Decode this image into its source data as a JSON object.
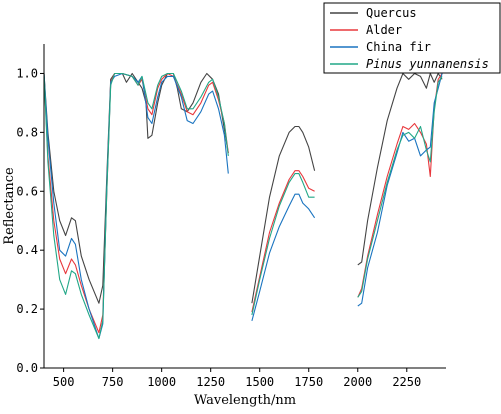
{
  "chart_data": {
    "type": "line",
    "title": "",
    "xlabel": "Wavelength/nm",
    "ylabel": "Reflectance",
    "xlim": [
      400,
      2450
    ],
    "ylim": [
      0,
      1.1
    ],
    "x_ticks": [
      500,
      750,
      1000,
      1250,
      1500,
      1750,
      2000,
      2250
    ],
    "y_ticks": [
      0.0,
      0.2,
      0.4,
      0.6,
      0.8,
      1.0
    ],
    "x_tick_labels": [
      "500",
      "750",
      "1000",
      "1250",
      "1500",
      "1750",
      "2000",
      "2250"
    ],
    "y_tick_labels": [
      "0.0",
      "0.2",
      "0.4",
      "0.6",
      "0.8",
      "1.0"
    ],
    "grid": false,
    "legend_position": "top-right",
    "series": [
      {
        "name": "Quercus",
        "color": "#444444",
        "segments": [
          [
            [
              400,
              1.0
            ],
            [
              420,
              0.8
            ],
            [
              450,
              0.6
            ],
            [
              480,
              0.5
            ],
            [
              510,
              0.45
            ],
            [
              540,
              0.51
            ],
            [
              560,
              0.5
            ],
            [
              590,
              0.38
            ],
            [
              630,
              0.3
            ],
            [
              680,
              0.22
            ],
            [
              700,
              0.28
            ],
            [
              720,
              0.65
            ],
            [
              740,
              0.98
            ],
            [
              760,
              1.0
            ],
            [
              800,
              1.0
            ],
            [
              820,
              0.97
            ],
            [
              850,
              1.0
            ],
            [
              880,
              0.97
            ],
            [
              900,
              0.95
            ],
            [
              920,
              0.9
            ],
            [
              930,
              0.78
            ],
            [
              950,
              0.79
            ],
            [
              980,
              0.9
            ],
            [
              1000,
              0.96
            ],
            [
              1030,
              1.0
            ],
            [
              1060,
              1.0
            ],
            [
              1080,
              0.95
            ],
            [
              1100,
              0.88
            ],
            [
              1130,
              0.87
            ],
            [
              1160,
              0.9
            ],
            [
              1200,
              0.97
            ],
            [
              1230,
              1.0
            ],
            [
              1260,
              0.98
            ],
            [
              1290,
              0.93
            ],
            [
              1310,
              0.85
            ],
            [
              1340,
              0.73
            ]
          ],
          [
            [
              1460,
              0.22
            ],
            [
              1500,
              0.38
            ],
            [
              1550,
              0.58
            ],
            [
              1600,
              0.72
            ],
            [
              1650,
              0.8
            ],
            [
              1680,
              0.82
            ],
            [
              1700,
              0.82
            ],
            [
              1720,
              0.8
            ],
            [
              1750,
              0.75
            ],
            [
              1780,
              0.67
            ]
          ],
          [
            [
              2000,
              0.35
            ],
            [
              2020,
              0.36
            ],
            [
              2050,
              0.5
            ],
            [
              2100,
              0.68
            ],
            [
              2150,
              0.84
            ],
            [
              2200,
              0.95
            ],
            [
              2230,
              1.0
            ],
            [
              2260,
              0.98
            ],
            [
              2290,
              1.0
            ],
            [
              2320,
              0.99
            ],
            [
              2350,
              0.95
            ],
            [
              2370,
              1.0
            ],
            [
              2390,
              0.97
            ],
            [
              2410,
              1.0
            ],
            [
              2430,
              0.98
            ]
          ]
        ]
      },
      {
        "name": "Alder",
        "color": "#e8383d",
        "segments": [
          [
            [
              400,
              1.0
            ],
            [
              420,
              0.72
            ],
            [
              450,
              0.5
            ],
            [
              480,
              0.37
            ],
            [
              510,
              0.32
            ],
            [
              540,
              0.37
            ],
            [
              560,
              0.35
            ],
            [
              590,
              0.28
            ],
            [
              630,
              0.2
            ],
            [
              680,
              0.12
            ],
            [
              700,
              0.18
            ],
            [
              720,
              0.6
            ],
            [
              740,
              0.97
            ],
            [
              760,
              1.0
            ],
            [
              800,
              1.0
            ],
            [
              850,
              0.99
            ],
            [
              880,
              0.96
            ],
            [
              900,
              0.98
            ],
            [
              930,
              0.88
            ],
            [
              950,
              0.86
            ],
            [
              980,
              0.95
            ],
            [
              1000,
              0.98
            ],
            [
              1030,
              1.0
            ],
            [
              1060,
              0.99
            ],
            [
              1100,
              0.93
            ],
            [
              1130,
              0.87
            ],
            [
              1160,
              0.86
            ],
            [
              1200,
              0.9
            ],
            [
              1240,
              0.96
            ],
            [
              1260,
              0.97
            ],
            [
              1290,
              0.91
            ],
            [
              1320,
              0.83
            ],
            [
              1340,
              0.73
            ]
          ],
          [
            [
              1460,
              0.19
            ],
            [
              1500,
              0.31
            ],
            [
              1550,
              0.46
            ],
            [
              1600,
              0.56
            ],
            [
              1650,
              0.64
            ],
            [
              1680,
              0.67
            ],
            [
              1700,
              0.67
            ],
            [
              1720,
              0.65
            ],
            [
              1750,
              0.61
            ],
            [
              1780,
              0.6
            ]
          ],
          [
            [
              2000,
              0.24
            ],
            [
              2020,
              0.27
            ],
            [
              2050,
              0.38
            ],
            [
              2100,
              0.52
            ],
            [
              2150,
              0.65
            ],
            [
              2200,
              0.76
            ],
            [
              2230,
              0.82
            ],
            [
              2260,
              0.81
            ],
            [
              2290,
              0.83
            ],
            [
              2320,
              0.8
            ],
            [
              2350,
              0.76
            ],
            [
              2370,
              0.65
            ],
            [
              2390,
              0.88
            ],
            [
              2410,
              0.98
            ],
            [
              2430,
              1.0
            ]
          ]
        ]
      },
      {
        "name": "China fir",
        "color": "#1a74c0",
        "segments": [
          [
            [
              400,
              1.0
            ],
            [
              420,
              0.78
            ],
            [
              450,
              0.56
            ],
            [
              480,
              0.4
            ],
            [
              510,
              0.38
            ],
            [
              540,
              0.44
            ],
            [
              560,
              0.42
            ],
            [
              590,
              0.3
            ],
            [
              630,
              0.2
            ],
            [
              680,
              0.1
            ],
            [
              700,
              0.15
            ],
            [
              720,
              0.62
            ],
            [
              740,
              0.97
            ],
            [
              760,
              0.99
            ],
            [
              800,
              1.0
            ],
            [
              850,
              0.99
            ],
            [
              880,
              0.97
            ],
            [
              900,
              0.99
            ],
            [
              930,
              0.85
            ],
            [
              950,
              0.83
            ],
            [
              980,
              0.92
            ],
            [
              1000,
              0.97
            ],
            [
              1030,
              0.99
            ],
            [
              1060,
              0.99
            ],
            [
              1100,
              0.92
            ],
            [
              1130,
              0.84
            ],
            [
              1160,
              0.83
            ],
            [
              1200,
              0.87
            ],
            [
              1240,
              0.93
            ],
            [
              1260,
              0.94
            ],
            [
              1290,
              0.88
            ],
            [
              1320,
              0.79
            ],
            [
              1340,
              0.66
            ]
          ],
          [
            [
              1460,
              0.16
            ],
            [
              1500,
              0.26
            ],
            [
              1550,
              0.39
            ],
            [
              1600,
              0.48
            ],
            [
              1650,
              0.55
            ],
            [
              1680,
              0.59
            ],
            [
              1700,
              0.59
            ],
            [
              1720,
              0.56
            ],
            [
              1750,
              0.54
            ],
            [
              1780,
              0.51
            ]
          ],
          [
            [
              2000,
              0.21
            ],
            [
              2020,
              0.22
            ],
            [
              2050,
              0.34
            ],
            [
              2100,
              0.46
            ],
            [
              2150,
              0.62
            ],
            [
              2200,
              0.73
            ],
            [
              2230,
              0.8
            ],
            [
              2260,
              0.77
            ],
            [
              2290,
              0.78
            ],
            [
              2320,
              0.72
            ],
            [
              2350,
              0.74
            ],
            [
              2370,
              0.75
            ],
            [
              2390,
              0.9
            ],
            [
              2410,
              0.95
            ],
            [
              2430,
              1.0
            ]
          ]
        ]
      },
      {
        "name": "Pinus yunnanensis",
        "color": "#21a787",
        "segments": [
          [
            [
              400,
              1.0
            ],
            [
              420,
              0.7
            ],
            [
              450,
              0.45
            ],
            [
              480,
              0.3
            ],
            [
              510,
              0.25
            ],
            [
              540,
              0.33
            ],
            [
              560,
              0.32
            ],
            [
              590,
              0.25
            ],
            [
              630,
              0.18
            ],
            [
              680,
              0.1
            ],
            [
              700,
              0.16
            ],
            [
              720,
              0.6
            ],
            [
              740,
              0.96
            ],
            [
              760,
              1.0
            ],
            [
              800,
              1.0
            ],
            [
              850,
              0.99
            ],
            [
              880,
              0.96
            ],
            [
              900,
              0.99
            ],
            [
              930,
              0.9
            ],
            [
              950,
              0.88
            ],
            [
              980,
              0.96
            ],
            [
              1000,
              0.99
            ],
            [
              1030,
              1.0
            ],
            [
              1060,
              1.0
            ],
            [
              1100,
              0.94
            ],
            [
              1130,
              0.88
            ],
            [
              1160,
              0.88
            ],
            [
              1200,
              0.92
            ],
            [
              1240,
              0.97
            ],
            [
              1260,
              0.98
            ],
            [
              1290,
              0.92
            ],
            [
              1320,
              0.83
            ],
            [
              1340,
              0.72
            ]
          ],
          [
            [
              1460,
              0.18
            ],
            [
              1500,
              0.3
            ],
            [
              1550,
              0.44
            ],
            [
              1600,
              0.55
            ],
            [
              1650,
              0.63
            ],
            [
              1680,
              0.66
            ],
            [
              1700,
              0.66
            ],
            [
              1720,
              0.63
            ],
            [
              1750,
              0.58
            ],
            [
              1780,
              0.58
            ]
          ],
          [
            [
              2000,
              0.24
            ],
            [
              2020,
              0.26
            ],
            [
              2050,
              0.37
            ],
            [
              2100,
              0.5
            ],
            [
              2150,
              0.63
            ],
            [
              2200,
              0.74
            ],
            [
              2230,
              0.79
            ],
            [
              2260,
              0.8
            ],
            [
              2290,
              0.78
            ],
            [
              2320,
              0.82
            ],
            [
              2350,
              0.74
            ],
            [
              2370,
              0.7
            ],
            [
              2390,
              0.87
            ],
            [
              2410,
              0.97
            ],
            [
              2430,
              0.99
            ]
          ]
        ]
      }
    ]
  }
}
